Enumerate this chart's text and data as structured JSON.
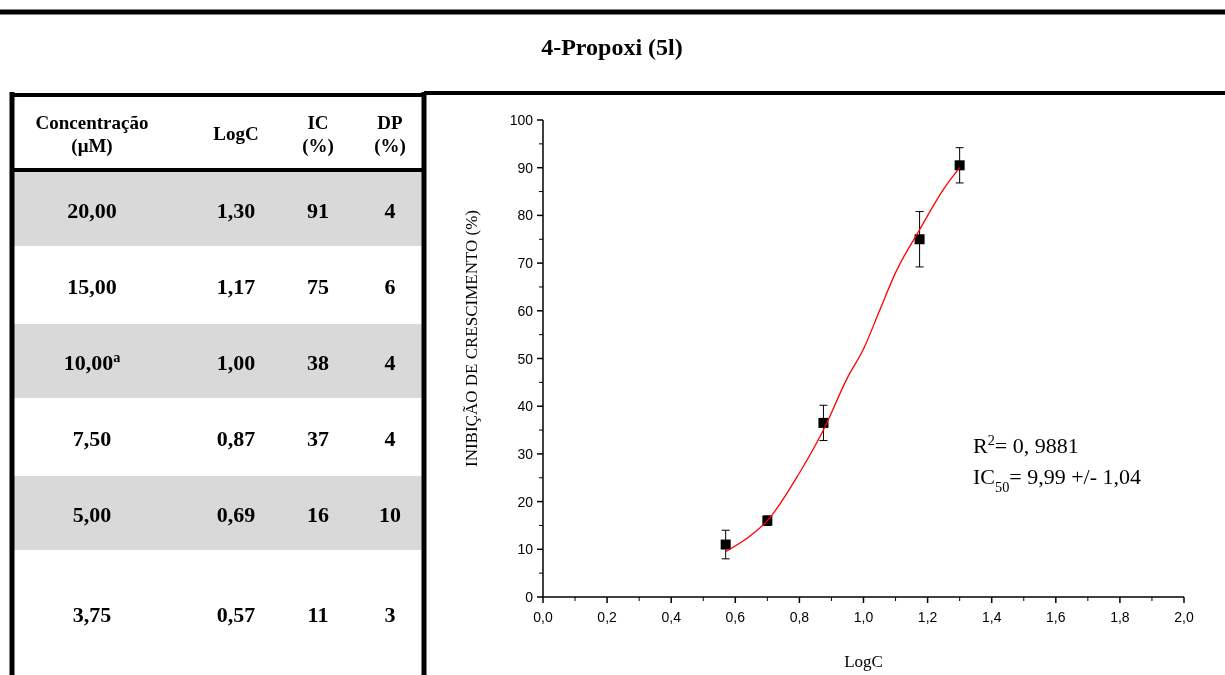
{
  "chart_data": [
    {
      "type": "other",
      "data_labels": true,
      "xlabel": "Concentração (μM)",
      "categories": [
        "20,00",
        "15,00",
        "10,00$^{a}$",
        "7,50",
        "5,00",
        "3,75"
      ],
      "y2label": "LogC",
      "y2_categories": [
        "1,30",
        "1,17",
        "1,00",
        "0,87",
        "0,69",
        "0,57"
      ],
      "series": [
        {
          "name": "IC (%)",
          "values": [
            91,
            75,
            38,
            37,
            16,
            11
          ]
        },
        {
          "name": "DP (%)",
          "values": [
            4,
            6,
            4,
            4,
            10,
            3
          ]
        }
      ]
    },
    {
      "type": "scatter",
      "title": "4-Propoxi (5l)",
      "xlabel": "LogC",
      "ylabel": "INIBIÇÃO DE CRESCIMENTO (%)",
      "marker": "square",
      "xlim": [
        0,
        2
      ],
      "xticks": [
        {
          "value": 0,
          "label": "0,0"
        },
        {
          "value": 0.2,
          "label": "0,2"
        },
        {
          "value": 0.4,
          "label": "0,4"
        },
        {
          "value": 0.6,
          "label": "0,6"
        },
        {
          "value": 0.8,
          "label": "0,8"
        },
        {
          "value": 1.0,
          "label": "1,0"
        },
        {
          "value": 1.2,
          "label": "1,2"
        },
        {
          "value": 1.4,
          "label": "1,4"
        },
        {
          "value": 1.6,
          "label": "1,6"
        },
        {
          "value": 1.8,
          "label": "1,8"
        },
        {
          "value": 2.0,
          "label": "2,0"
        }
      ],
      "ylim": [
        0,
        100
      ],
      "yticks": [
        0,
        10,
        20,
        30,
        40,
        50,
        60,
        70,
        80,
        90,
        100
      ],
      "annotations": [
        "R$^{2}$= 0, 9881",
        "IC$_{50}$= 9,99 +/- 1,04"
      ],
      "series": [
        {
          "type": "scatter",
          "color": "#000000",
          "x": [
            0.57,
            0.7,
            0.875,
            1.175,
            1.3
          ],
          "values": [
            11,
            16,
            36.5,
            75,
            90.5
          ],
          "errors": [
            3,
            1,
            3.7,
            5.8,
            3.7
          ]
        },
        {
          "type": "line",
          "marker": "none",
          "color": "#ff0000",
          "x": [
            0.57,
            0.65,
            0.7,
            0.8,
            0.875,
            0.95,
            1.0,
            1.05,
            1.1,
            1.175,
            1.25,
            1.3
          ],
          "values": [
            9.5,
            13,
            16,
            26,
            35,
            46,
            52,
            60,
            68,
            77,
            85.5,
            90
          ]
        }
      ]
    }
  ]
}
